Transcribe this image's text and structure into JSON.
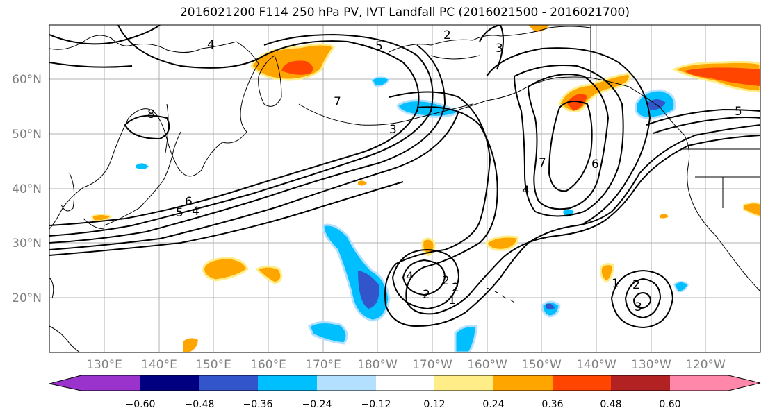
{
  "title": "2016021200 F114 250 hPa PV, IVT Landfall PC (2016021500 - 2016021700)",
  "lat_labels": [
    "60°N",
    "50°N",
    "40°N",
    "30°N",
    "20°N"
  ],
  "lon_labels": [
    "130°E",
    "140°E",
    "150°E",
    "160°E",
    "170°E",
    "180°W",
    "170°W",
    "160°W",
    "150°W",
    "140°W",
    "130°W",
    "120°W"
  ],
  "contour_labels": [
    "4",
    "3",
    "2",
    "7",
    "8",
    "5",
    "6",
    "4",
    "5",
    "7",
    "6",
    "4",
    "3",
    "5",
    "2",
    "1",
    "2",
    "1",
    "2",
    "3",
    "4",
    "2"
  ],
  "colorbar": {
    "colors": [
      "#9933cc",
      "#000080",
      "#3355cc",
      "#00bfff",
      "#b3e0ff",
      "#ffffff",
      "#ffee88",
      "#ffa500",
      "#ff4500",
      "#b22222",
      "#ff88aa"
    ],
    "tick_labels": [
      "−0.60",
      "−0.48",
      "−0.36",
      "−0.24",
      "−0.12",
      "0.12",
      "0.24",
      "0.36",
      "0.48",
      "0.60"
    ]
  },
  "map_extent": {
    "lon_min": 120,
    "lon_max": 250,
    "lat_min": 10,
    "lat_max": 70
  }
}
